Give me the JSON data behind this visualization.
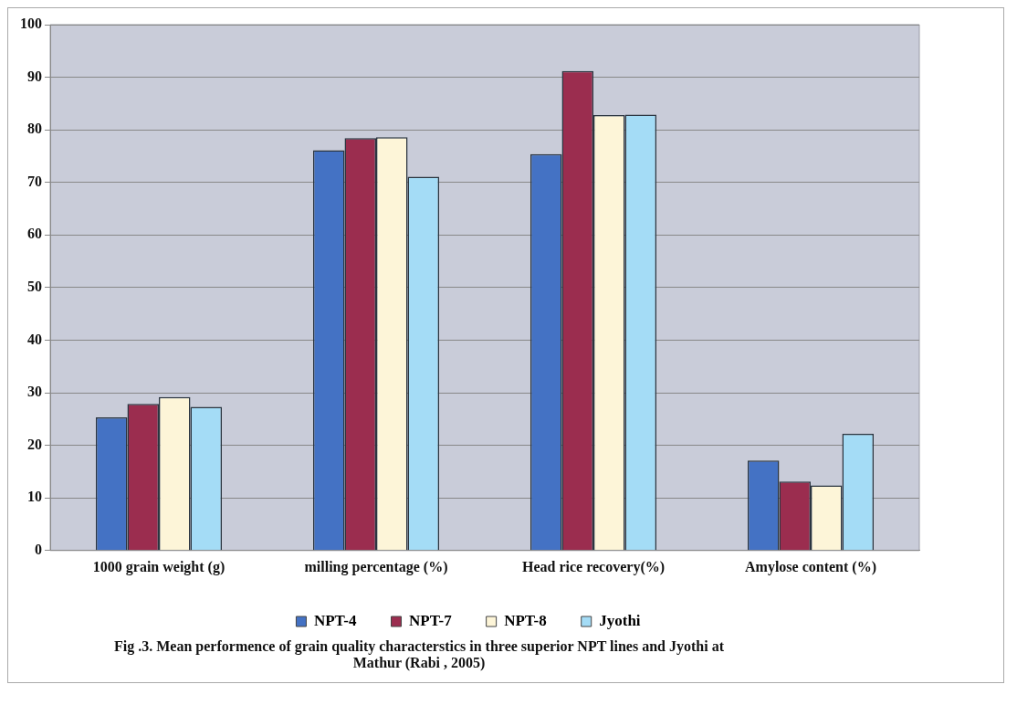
{
  "chart_data": {
    "type": "bar",
    "categories": [
      "1000 grain weight (g)",
      "milling percentage (%)",
      "Head rice recovery(%)",
      "Amylose content (%)"
    ],
    "series": [
      {
        "name": "NPT-4",
        "color": "#4472c4",
        "values": [
          25.3,
          76.1,
          75.4,
          17.1
        ]
      },
      {
        "name": "NPT-7",
        "color": "#9b2d4f",
        "values": [
          27.9,
          78.4,
          91.2,
          13.1
        ]
      },
      {
        "name": "NPT-8",
        "color": "#fdf5d8",
        "values": [
          29.2,
          78.6,
          82.8,
          12.4
        ]
      },
      {
        "name": "Jyothi",
        "color": "#a4dcf6",
        "values": [
          27.3,
          71.1,
          82.9,
          22.2
        ]
      }
    ],
    "ylim": [
      0,
      100
    ],
    "yticks": [
      0,
      10,
      20,
      30,
      40,
      50,
      60,
      70,
      80,
      90,
      100
    ],
    "grid": "y",
    "legend": "bottom",
    "annotations": [
      "Fig .3. Mean performence of grain quality characterstics  in  three  superior NPT lines and Jyothi at  Mathur  (Rabi , 2005)"
    ]
  }
}
